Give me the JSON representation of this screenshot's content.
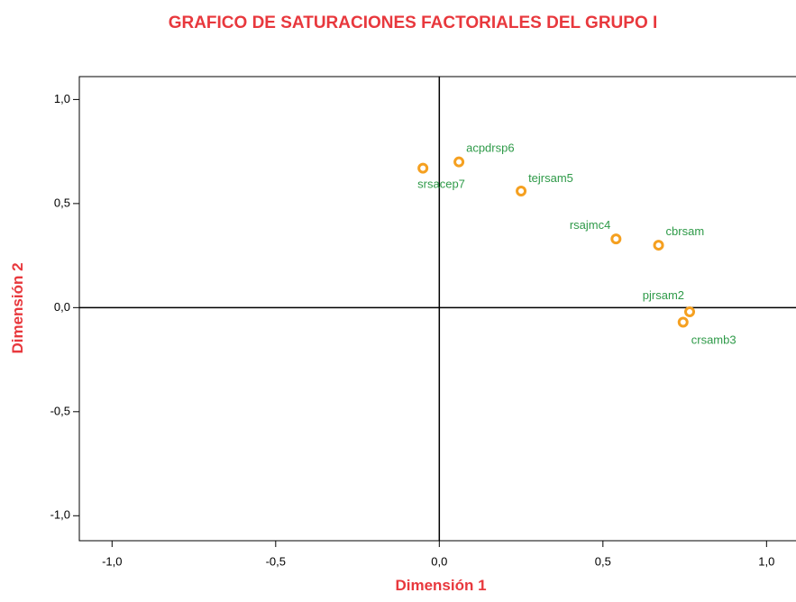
{
  "chart_data": {
    "type": "scatter",
    "title": "GRAFICO DE SATURACIONES FACTORIALES DEL GRUPO I",
    "x_label": "Dimensión 1",
    "y_label": "Dimensión 2",
    "labels": [
      "srsacep7",
      "acpdrsp6",
      "tejrsam5",
      "rsajmc4",
      "cbrsam",
      "pjrsam2",
      "crsamb3"
    ],
    "x": [
      -0.05,
      0.06,
      0.25,
      0.54,
      0.67,
      0.765,
      0.745
    ],
    "values": [
      0.67,
      0.7,
      0.56,
      0.33,
      0.3,
      -0.02,
      -0.07
    ],
    "color": "#f5a020",
    "xlim": [
      -1.1,
      1.09
    ],
    "ylim": [
      -1.12,
      1.11
    ],
    "xticks": [
      {
        "value": -1,
        "label": "-1,0"
      },
      {
        "value": -0.5,
        "label": "-0,5"
      },
      {
        "value": 0,
        "label": "0,0"
      },
      {
        "value": 0.5,
        "label": "0,5"
      },
      {
        "value": 1,
        "label": "1,0"
      }
    ],
    "yticks": [
      {
        "value": -1,
        "label": "-1,0"
      },
      {
        "value": -0.5,
        "label": "-0,5"
      },
      {
        "value": 0,
        "label": "0,0"
      },
      {
        "value": 0.5,
        "label": "0,5"
      },
      {
        "value": 1,
        "label": "1,0"
      }
    ]
  }
}
